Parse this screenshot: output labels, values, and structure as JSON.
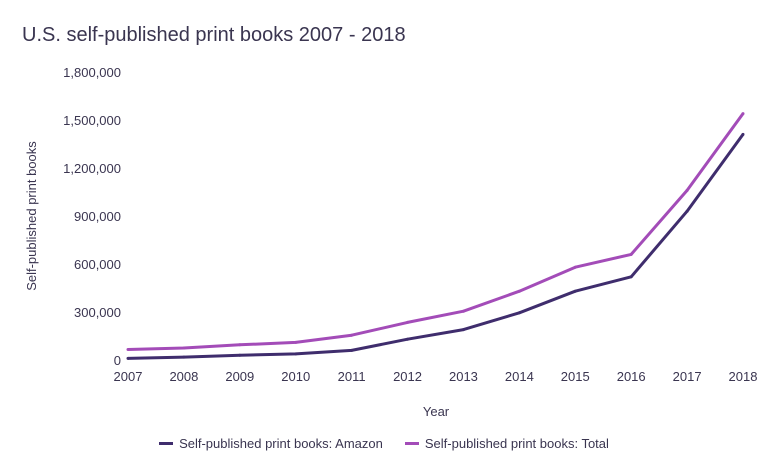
{
  "chart_data": {
    "type": "line",
    "title": "U.S. self-published print books 2007 - 2018",
    "xlabel": "Year",
    "ylabel": "Self-published print books",
    "x": [
      "2007",
      "2008",
      "2009",
      "2010",
      "2011",
      "2012",
      "2013",
      "2014",
      "2015",
      "2016",
      "2017",
      "2018"
    ],
    "ylim": [
      0,
      1800000
    ],
    "yticks": [
      "0",
      "300,000",
      "600,000",
      "900,000",
      "1,200,000",
      "1,500,000",
      "1,800,000"
    ],
    "grid": false,
    "legend_position": "bottom",
    "series": [
      {
        "name": "Self-published print books: Amazon",
        "color": "#3f2d6d",
        "values": [
          10000,
          18000,
          30000,
          38000,
          60000,
          130000,
          190000,
          295000,
          430000,
          520000,
          930000,
          1410000
        ]
      },
      {
        "name": "Self-published print books: Total",
        "color": "#a34cb8",
        "values": [
          66000,
          75000,
          95000,
          110000,
          155000,
          235000,
          305000,
          430000,
          580000,
          660000,
          1060000,
          1540000
        ]
      }
    ]
  }
}
